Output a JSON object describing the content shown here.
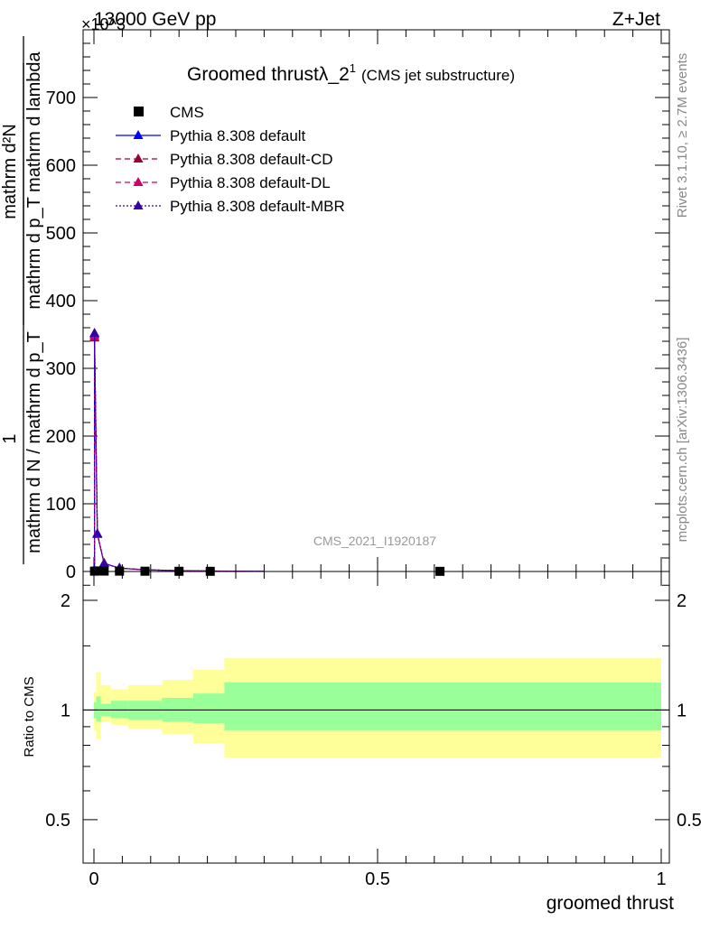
{
  "header": {
    "left": "13000 GeV pp",
    "right": "Z+Jet",
    "exponent": "×10^3"
  },
  "side_labels": {
    "rivet": "Rivet 3.1.10, ≥ 2.7M events",
    "mcplots": "mcplots.cern.ch [arXiv:1306.3436]"
  },
  "watermark": "CMS_2021_I1920187",
  "chart_data": [
    {
      "type": "line",
      "title_main": "Groomed thrustλ_2",
      "title_sup": "1",
      "title_note": "(CMS jet substructure)",
      "ylabel_num": "mathrm d²N",
      "ylabel_den": "mathrm d p_T mathrm d lambda",
      "ylabel_prefix_num": "1",
      "ylabel_prefix_den": "mathrm d N / mathrm d p_T",
      "y_multiplier": "×10^3",
      "xlim": [
        0,
        1
      ],
      "ylim": [
        0,
        800
      ],
      "y_ticks": [
        0,
        100,
        200,
        300,
        400,
        500,
        600,
        700
      ],
      "legend": [
        {
          "label": "CMS",
          "color": "#000000",
          "marker": "square",
          "dash": ""
        },
        {
          "label": "Pythia 8.308 default",
          "color": "#0000ff",
          "marker": "triangle",
          "dash": ""
        },
        {
          "label": "Pythia 8.308 default-CD",
          "color": "#990033",
          "marker": "triangle",
          "dash": "6,4"
        },
        {
          "label": "Pythia 8.308 default-DL",
          "color": "#cc0066",
          "marker": "triangle",
          "dash": "6,4"
        },
        {
          "label": "Pythia 8.308 default-MBR",
          "color": "#3300aa",
          "marker": "triangle",
          "dash": "2,2"
        }
      ],
      "data_points": {
        "x": [
          0.001,
          0.006,
          0.018,
          0.045,
          0.09,
          0.15,
          0.205,
          0.61
        ],
        "y": [
          0.5,
          0.8,
          0.6,
          0.5,
          0.4,
          0.3,
          0.25,
          0.2
        ]
      },
      "series": [
        {
          "name": "Pythia 8.308 default",
          "x": [
            0.001,
            0.006,
            0.018,
            0.045,
            0.09,
            0.15,
            0.205,
            0.3
          ],
          "y": [
            350,
            55,
            12,
            5,
            2.5,
            1.2,
            0.7,
            0.2
          ]
        },
        {
          "name": "Pythia 8.308 default-CD",
          "x": [
            0.001,
            0.006,
            0.018,
            0.045,
            0.09,
            0.15,
            0.205,
            0.3
          ],
          "y": [
            345,
            55,
            12,
            5,
            2.5,
            1.2,
            0.7,
            0.2
          ]
        },
        {
          "name": "Pythia 8.308 default-DL",
          "x": [
            0.001,
            0.006,
            0.018,
            0.045,
            0.09,
            0.15,
            0.205,
            0.3
          ],
          "y": [
            347,
            55,
            12,
            5,
            2.5,
            1.2,
            0.7,
            0.2
          ]
        },
        {
          "name": "Pythia 8.308 default-MBR",
          "x": [
            0.001,
            0.006,
            0.018,
            0.045,
            0.09,
            0.15,
            0.205,
            0.3
          ],
          "y": [
            352,
            56,
            12,
            5,
            2.5,
            1.2,
            0.7,
            0.2
          ]
        }
      ]
    },
    {
      "type": "area",
      "ylabel": "Ratio to CMS",
      "xlabel": "groomed thrust",
      "xlim": [
        0,
        1
      ],
      "ylim": [
        0.38,
        2.4
      ],
      "log_y": true,
      "y_ticks": [
        0.5,
        1,
        2
      ],
      "y_tick_labels": [
        "0.5",
        "1",
        "2"
      ],
      "x_ticks": [
        0,
        0.5,
        1
      ],
      "x_tick_labels": [
        "0",
        "0.5",
        "1"
      ],
      "band_colors": {
        "outer": "#ffff99",
        "inner": "#99ff99"
      },
      "bands": [
        {
          "x0": 0.0,
          "x1": 0.004,
          "out_lo": 0.88,
          "out_hi": 1.12,
          "in_lo": 0.95,
          "in_hi": 1.05
        },
        {
          "x0": 0.004,
          "x1": 0.012,
          "out_lo": 0.83,
          "out_hi": 1.27,
          "in_lo": 0.93,
          "in_hi": 1.09
        },
        {
          "x0": 0.012,
          "x1": 0.03,
          "out_lo": 0.93,
          "out_hi": 1.17,
          "in_lo": 0.96,
          "in_hi": 1.04
        },
        {
          "x0": 0.03,
          "x1": 0.06,
          "out_lo": 0.91,
          "out_hi": 1.14,
          "in_lo": 0.95,
          "in_hi": 1.06
        },
        {
          "x0": 0.06,
          "x1": 0.12,
          "out_lo": 0.89,
          "out_hi": 1.17,
          "in_lo": 0.94,
          "in_hi": 1.06
        },
        {
          "x0": 0.12,
          "x1": 0.175,
          "out_lo": 0.86,
          "out_hi": 1.21,
          "in_lo": 0.93,
          "in_hi": 1.08
        },
        {
          "x0": 0.175,
          "x1": 0.23,
          "out_lo": 0.81,
          "out_hi": 1.29,
          "in_lo": 0.92,
          "in_hi": 1.11
        },
        {
          "x0": 0.23,
          "x1": 1.0,
          "out_lo": 0.74,
          "out_hi": 1.39,
          "in_lo": 0.88,
          "in_hi": 1.19
        }
      ],
      "reference": 1
    }
  ]
}
